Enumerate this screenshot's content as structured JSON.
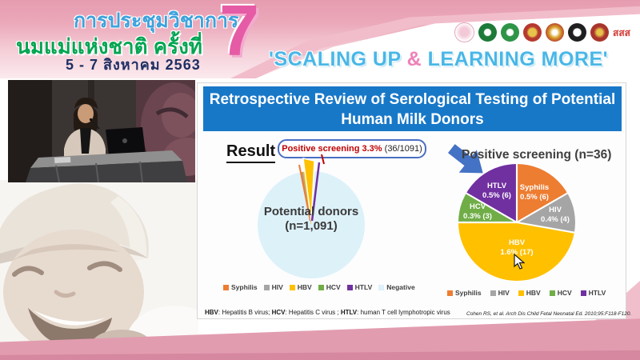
{
  "banner": {
    "title_line1": "การประชุมวิชาการ",
    "title_line2": "นมแม่แห่งชาติ ครั้งที่",
    "date_line": "5 - 7 สิงหาคม 2563",
    "edition_number": "7",
    "slogan_open": "'SCALING UP ",
    "slogan_amp": "&",
    "slogan_close": " LEARNING MORE'",
    "logos": [
      {
        "name": "mother-and-child emblem"
      },
      {
        "name": "green ministry seal"
      },
      {
        "name": "green health department seal"
      },
      {
        "name": "red-gold royal emblem"
      },
      {
        "name": "gold royal crest"
      },
      {
        "name": "black-white crest"
      },
      {
        "name": "red crest"
      },
      {
        "name": "ThaiHealth",
        "text": "สสส"
      }
    ]
  },
  "slide": {
    "title": "Retrospective Review of Serological Testing of Potential Human Milk Donors",
    "result_label": "Result",
    "callout_highlight": "Positive screening 3.3%",
    "callout_fraction": " (36/1091)",
    "footnote_parts": [
      "HBV",
      ": Hepatitis B virus; ",
      "HCV",
      ": Hepatitis C virus ; ",
      "HTLV",
      ": human T cell lymphotropic virus"
    ],
    "citation": "Cohen RS, et al. Arch Dis Child Fetal Neonatal Ed. 2010;95:F118-F120."
  },
  "chart_data": [
    {
      "type": "pie",
      "title": "Potential donors (n=1,091)",
      "center_label": [
        "Potential donors",
        "(n=1,091)"
      ],
      "total": 1091,
      "start_angle": -12,
      "separators": false,
      "legend_position": "bottom",
      "slices": [
        {
          "label": "Syphilis",
          "value": 6,
          "color": "#ED7D31"
        },
        {
          "label": "HIV",
          "value": 4,
          "color": "#A5A5A5"
        },
        {
          "label": "HBV",
          "value": 17,
          "color": "#FFC000"
        },
        {
          "label": "HCV",
          "value": 3,
          "color": "#70AD47"
        },
        {
          "label": "HTLV",
          "value": 6,
          "color": "#7030A0"
        },
        {
          "label": "Negative",
          "value": 1055,
          "color": "#DDF1F9"
        }
      ],
      "legend": [
        "Syphilis",
        "HIV",
        "HBV",
        "HCV",
        "HTLV",
        "Negative"
      ]
    },
    {
      "type": "pie",
      "title": "Positive screening (n=36)",
      "total": 36,
      "start_angle": 0,
      "separators": true,
      "legend_position": "bottom",
      "slices": [
        {
          "label": "Syphilis",
          "value": 6,
          "pct_label": "0.5% (6)",
          "color": "#ED7D31"
        },
        {
          "label": "HIV",
          "value": 4,
          "pct_label": "0.4% (4)",
          "color": "#A5A5A5"
        },
        {
          "label": "HBV",
          "value": 17,
          "pct_label": "1.6% (17)",
          "color": "#FFC000"
        },
        {
          "label": "HCV",
          "value": 3,
          "pct_label": "0.3% (3)",
          "color": "#70AD47"
        },
        {
          "label": "HTLV",
          "value": 6,
          "pct_label": "0.5% (6)",
          "color": "#7030A0"
        }
      ],
      "legend": [
        "Syphilis",
        "HIV",
        "HBV",
        "HCV",
        "HTLV"
      ]
    }
  ],
  "colors": {
    "title_bar_blue": "#1878C8",
    "callout_red": "#C00000",
    "arrow_blue": "#4472C4",
    "banner_pink": "#E9A1B2",
    "slogan_blue": "#49B7E7",
    "slogan_amp_pink": "#EE82B8",
    "thai_line1_blue": "#3DA2DC",
    "thai_line2_green": "#00A551",
    "date_navy": "#1E2F63",
    "bottom_band_pink": "#E29CB0"
  }
}
